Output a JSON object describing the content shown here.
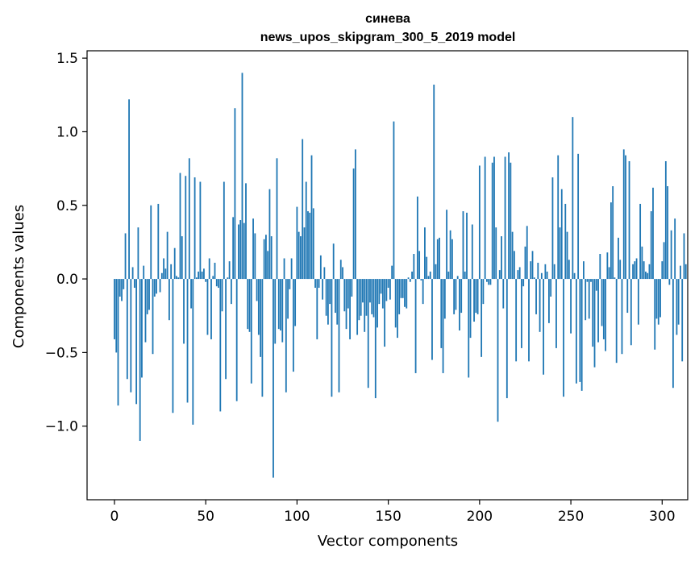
{
  "chart_data": {
    "type": "bar",
    "title": "синева",
    "subtitle": "news_upos_skipgram_300_5_2019 model",
    "xlabel": "Vector components",
    "ylabel": "Components values",
    "xlim": [
      -15,
      314
    ],
    "ylim": [
      -1.5,
      1.55
    ],
    "xticks": [
      0,
      50,
      100,
      150,
      200,
      250,
      300
    ],
    "xtick_labels": [
      "0",
      "50",
      "100",
      "150",
      "200",
      "250",
      "300"
    ],
    "yticks": [
      1.5,
      1.0,
      0.5,
      0.0,
      -0.5,
      -1.0
    ],
    "ytick_labels": [
      "1.5",
      "1.0",
      "0.5",
      "0.0",
      "−0.5",
      "−1.0"
    ],
    "grid": false,
    "bar_color": "#1f77b4",
    "values": [
      -0.41,
      -0.5,
      -0.86,
      -0.12,
      -0.15,
      -0.07,
      0.31,
      -0.68,
      1.22,
      -0.77,
      0.08,
      -0.06,
      -0.85,
      0.35,
      -1.1,
      -0.67,
      0.09,
      -0.43,
      -0.24,
      -0.21,
      0.5,
      -0.51,
      -0.12,
      -0.1,
      0.51,
      -0.09,
      0.04,
      0.14,
      0.07,
      0.32,
      -0.28,
      0.1,
      -0.91,
      0.21,
      0.02,
      0.01,
      0.72,
      0.29,
      -0.44,
      0.7,
      -0.84,
      0.82,
      -0.2,
      -0.99,
      0.69,
      0.01,
      0.05,
      0.66,
      0.05,
      0.07,
      -0.02,
      -0.38,
      0.14,
      -0.41,
      0.02,
      0.11,
      -0.05,
      -0.06,
      -0.9,
      -0.22,
      0.66,
      -0.68,
      0.01,
      0.12,
      -0.17,
      0.42,
      1.16,
      -0.83,
      0.37,
      0.4,
      1.4,
      0.38,
      0.65,
      -0.34,
      -0.36,
      -0.71,
      0.41,
      0.31,
      -0.15,
      -0.38,
      -0.53,
      -0.8,
      0.27,
      0.3,
      0.19,
      0.61,
      0.29,
      -1.35,
      -0.44,
      0.82,
      -0.34,
      -0.35,
      -0.43,
      0.14,
      -0.77,
      -0.27,
      -0.07,
      0.14,
      -0.63,
      -0.32,
      0.49,
      0.32,
      0.29,
      0.95,
      0.35,
      0.66,
      0.46,
      0.45,
      0.84,
      0.48,
      -0.06,
      -0.41,
      -0.06,
      0.16,
      -0.14,
      0.08,
      -0.25,
      -0.31,
      -0.17,
      -0.8,
      0.24,
      -0.23,
      -0.31,
      -0.77,
      0.13,
      0.08,
      -0.22,
      -0.34,
      -0.2,
      -0.41,
      -0.12,
      0.75,
      0.88,
      -0.38,
      -0.28,
      -0.25,
      -0.16,
      -0.36,
      -0.25,
      -0.74,
      -0.16,
      -0.24,
      -0.26,
      -0.81,
      -0.33,
      -0.17,
      -0.1,
      -0.2,
      -0.46,
      -0.15,
      -0.06,
      -0.14,
      0.09,
      1.07,
      -0.33,
      -0.4,
      -0.24,
      -0.13,
      -0.13,
      -0.19,
      -0.2,
      0.01,
      -0.02,
      0.05,
      0.17,
      -0.64,
      0.56,
      0.19,
      -0.01,
      -0.17,
      0.35,
      0.15,
      0.02,
      0.05,
      -0.55,
      1.32,
      0.1,
      0.27,
      0.28,
      -0.47,
      -0.64,
      -0.27,
      0.47,
      0.05,
      0.33,
      0.27,
      -0.24,
      -0.21,
      0.02,
      -0.35,
      -0.23,
      0.46,
      0.05,
      0.45,
      -0.67,
      -0.4,
      0.37,
      -0.29,
      -0.23,
      -0.24,
      0.77,
      -0.53,
      -0.17,
      0.83,
      -0.02,
      -0.04,
      -0.04,
      0.79,
      0.83,
      0.35,
      -0.97,
      0.06,
      0.29,
      -0.2,
      0.83,
      -0.81,
      0.86,
      0.79,
      0.32,
      0.19,
      -0.56,
      0.06,
      0.08,
      -0.47,
      -0.05,
      0.22,
      0.36,
      -0.56,
      0.12,
      0.19,
      0.01,
      -0.24,
      0.11,
      -0.36,
      0.04,
      -0.65,
      0.1,
      0.05,
      -0.3,
      -0.12,
      0.69,
      0.1,
      -0.47,
      0.84,
      0.35,
      0.61,
      -0.8,
      0.51,
      0.32,
      0.13,
      -0.37,
      1.1,
      0.04,
      -0.71,
      0.85,
      -0.7,
      -0.76,
      0.12,
      -0.28,
      -0.02,
      -0.27,
      -0.02,
      -0.46,
      -0.6,
      -0.08,
      -0.43,
      0.17,
      -0.32,
      -0.41,
      -0.49,
      0.18,
      0.08,
      0.52,
      0.63,
      0.01,
      -0.57,
      0.28,
      0.13,
      -0.51,
      0.88,
      0.84,
      -0.23,
      0.8,
      -0.45,
      0.1,
      0.12,
      0.14,
      -0.31,
      0.51,
      0.22,
      0.12,
      0.05,
      0.04,
      0.1,
      0.46,
      0.62,
      -0.48,
      -0.27,
      -0.31,
      -0.26,
      0.12,
      0.25,
      0.8,
      0.63,
      -0.04,
      0.33,
      -0.74,
      0.41,
      -0.38,
      -0.31,
      0.09,
      -0.56,
      0.31,
      0.1
    ]
  }
}
